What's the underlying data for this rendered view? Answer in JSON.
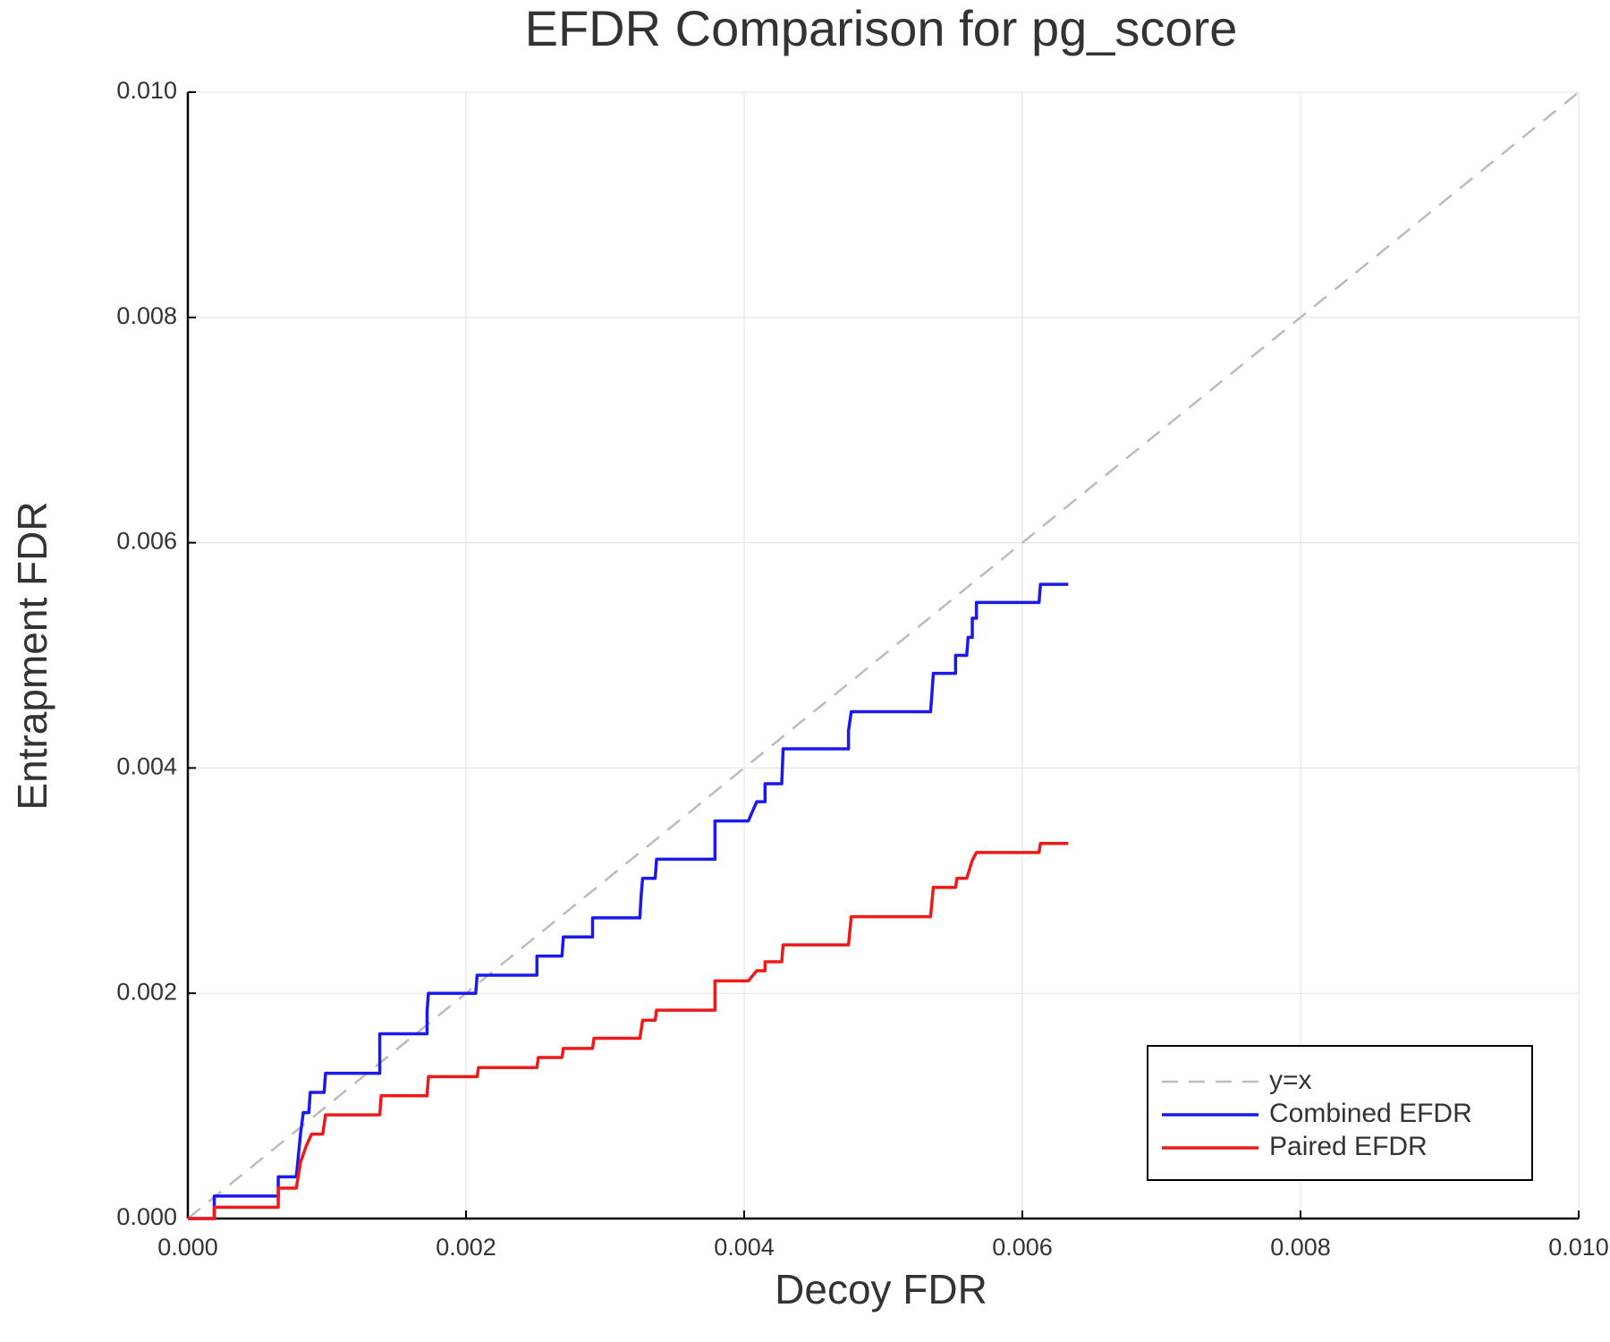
{
  "chart_data": {
    "type": "line",
    "title": "EFDR Comparison for pg_score",
    "xlabel": "Decoy FDR",
    "ylabel": "Entrapment FDR",
    "xlim": [
      0,
      0.01
    ],
    "ylim": [
      0,
      0.01
    ],
    "xticks": [
      {
        "value": 0,
        "label": "0.000"
      },
      {
        "value": 0.002,
        "label": "0.002"
      },
      {
        "value": 0.004,
        "label": "0.004"
      },
      {
        "value": 0.006,
        "label": "0.006"
      },
      {
        "value": 0.008,
        "label": "0.008"
      },
      {
        "value": 0.01,
        "label": "0.010"
      }
    ],
    "yticks": [
      {
        "value": 0,
        "label": "0.000"
      },
      {
        "value": 0.002,
        "label": "0.002"
      },
      {
        "value": 0.004,
        "label": "0.004"
      },
      {
        "value": 0.006,
        "label": "0.006"
      },
      {
        "value": 0.008,
        "label": "0.008"
      },
      {
        "value": 0.01,
        "label": "0.010"
      }
    ],
    "grid": true,
    "legend": "bottom right",
    "series": [
      {
        "name": "y=x",
        "color": "#bbbbbb",
        "style": "dashed",
        "x": [
          0,
          0.01
        ],
        "values": [
          0,
          0.01
        ]
      },
      {
        "name": "Combined EFDR",
        "color": "#1a1aee",
        "style": "solid",
        "x": [
          0,
          0.00019,
          0.00019,
          0.00065,
          0.00065,
          0.00078,
          0.00081,
          0.00083,
          0.00087,
          0.00088,
          0.00098,
          0.00099,
          0.00138,
          0.00138,
          0.00172,
          0.00172,
          0.00173,
          0.00207,
          0.00208,
          0.00251,
          0.00251,
          0.00269,
          0.0027,
          0.00291,
          0.00291,
          0.00325,
          0.00326,
          0.00327,
          0.00336,
          0.00337,
          0.00379,
          0.00379,
          0.00403,
          0.00409,
          0.00415,
          0.00415,
          0.00427,
          0.00428,
          0.00475,
          0.00475,
          0.00477,
          0.00534,
          0.00535,
          0.00536,
          0.00552,
          0.00552,
          0.0056,
          0.00561,
          0.00564,
          0.00564,
          0.00567,
          0.00567,
          0.00612,
          0.00613,
          0.00633
        ],
        "values": [
          0,
          0,
          0.0002,
          0.0002,
          0.00037,
          0.00037,
          0.00075,
          0.00094,
          0.00094,
          0.00112,
          0.00112,
          0.00129,
          0.00129,
          0.00164,
          0.00164,
          0.00184,
          0.002,
          0.002,
          0.00216,
          0.00216,
          0.00233,
          0.00233,
          0.0025,
          0.0025,
          0.00267,
          0.00267,
          0.00288,
          0.00302,
          0.00302,
          0.00319,
          0.00319,
          0.00353,
          0.00353,
          0.0037,
          0.0037,
          0.00386,
          0.00386,
          0.00417,
          0.00417,
          0.00433,
          0.0045,
          0.0045,
          0.00466,
          0.00484,
          0.00484,
          0.005,
          0.005,
          0.00516,
          0.00516,
          0.00533,
          0.00533,
          0.00547,
          0.00547,
          0.00563,
          0.00563
        ]
      },
      {
        "name": "Paired EFDR",
        "color": "#ee1a1a",
        "style": "solid",
        "x": [
          0,
          0.00019,
          0.00019,
          0.00065,
          0.00065,
          0.00078,
          0.00081,
          0.00085,
          0.00089,
          0.00097,
          0.00099,
          0.00138,
          0.00139,
          0.00172,
          0.00173,
          0.00208,
          0.00209,
          0.00251,
          0.00252,
          0.00269,
          0.0027,
          0.00291,
          0.00292,
          0.00325,
          0.00327,
          0.00336,
          0.00337,
          0.00379,
          0.00379,
          0.00403,
          0.00409,
          0.00415,
          0.00415,
          0.00427,
          0.00428,
          0.00475,
          0.00477,
          0.00534,
          0.00536,
          0.00552,
          0.00553,
          0.0056,
          0.00562,
          0.00564,
          0.00567,
          0.00612,
          0.00613,
          0.00633
        ],
        "values": [
          0,
          0,
          0.0001,
          0.0001,
          0.00027,
          0.00027,
          0.0005,
          0.00064,
          0.00075,
          0.00075,
          0.00092,
          0.00092,
          0.00109,
          0.00109,
          0.00126,
          0.00126,
          0.00134,
          0.00134,
          0.00143,
          0.00143,
          0.00151,
          0.00151,
          0.0016,
          0.0016,
          0.00176,
          0.00176,
          0.00185,
          0.00185,
          0.00211,
          0.00211,
          0.0022,
          0.0022,
          0.00228,
          0.00228,
          0.00243,
          0.00243,
          0.00268,
          0.00268,
          0.00294,
          0.00294,
          0.00302,
          0.00302,
          0.0031,
          0.00318,
          0.00325,
          0.00325,
          0.00333,
          0.00333
        ]
      }
    ]
  }
}
